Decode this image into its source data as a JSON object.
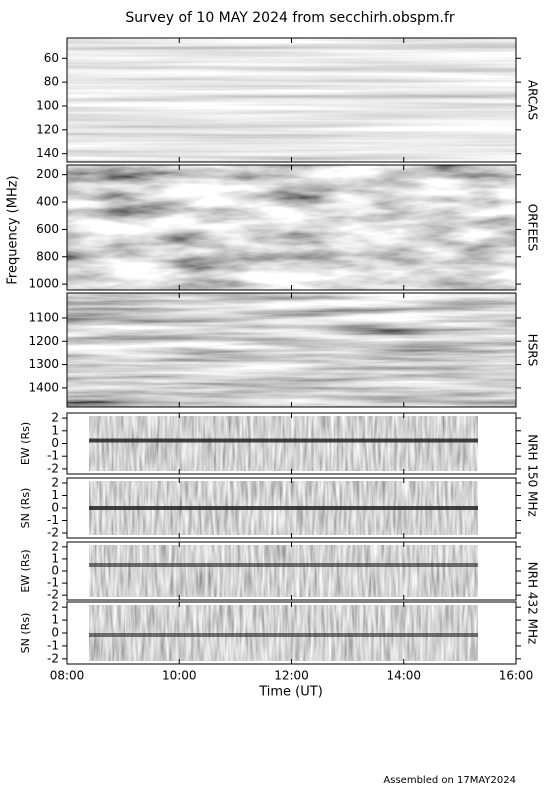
{
  "chart_data": {
    "type": "heatmap",
    "title": "Survey of 10 MAY 2024 from secchirh.obspm.fr",
    "ylabel": "Frequency (MHz)",
    "xlabel": "Time (UT)",
    "xlim": [
      8,
      16
    ],
    "xticks": [
      {
        "value": 8,
        "label": "08:00"
      },
      {
        "value": 10,
        "label": "10:00"
      },
      {
        "value": 12,
        "label": "12:00"
      },
      {
        "value": 14,
        "label": "14:00"
      },
      {
        "value": 16,
        "label": "16:00"
      }
    ],
    "panels": [
      {
        "name": "ARCAS",
        "ylim": [
          147,
          43
        ],
        "yticks": [
          60,
          80,
          100,
          120,
          140
        ]
      },
      {
        "name": "ORFEES",
        "ylim": [
          1043,
          129
        ],
        "yticks": [
          200,
          400,
          600,
          800,
          1000
        ]
      },
      {
        "name": "HSRS",
        "ylim": [
          1482,
          993
        ],
        "yticks": [
          1100,
          1200,
          1300,
          1400
        ]
      },
      {
        "ylabel": "EW (Rs)",
        "ylim": [
          -2.4,
          2.4
        ],
        "yticks": [
          -2,
          -1,
          0,
          1,
          2
        ]
      },
      {
        "ylabel": "SN (Rs)",
        "ylim": [
          -2.4,
          2.4
        ],
        "yticks": [
          -2,
          -1,
          0,
          1,
          2
        ]
      },
      {
        "ylabel": "EW (Rs)",
        "ylim": [
          -2.4,
          2.4
        ],
        "yticks": [
          -2,
          -1,
          0,
          1,
          2
        ]
      },
      {
        "ylabel": "SN (Rs)",
        "ylim": [
          -2.4,
          2.4
        ],
        "yticks": [
          -2,
          -1,
          0,
          1,
          2
        ]
      }
    ],
    "groups": [
      "NRH 150 MHz",
      "NRH 432 MHz"
    ],
    "footer": "Assembled on 17MAY2024"
  }
}
